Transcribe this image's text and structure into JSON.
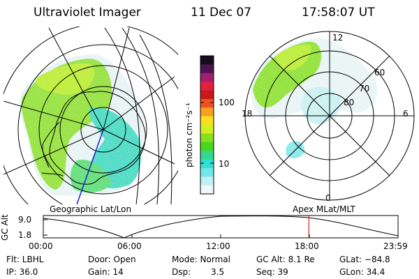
{
  "header": {
    "instrument": "Ultraviolet Imager",
    "date": "11 Dec 07",
    "time": "17:58:07 UT"
  },
  "colorbar": {
    "unit_label": "photon cm⁻²s⁻¹",
    "tick_labels": [
      "100",
      "10"
    ],
    "colors": [
      "#1a0a1e",
      "#4a1550",
      "#a0206e",
      "#e0203c",
      "#c81818",
      "#f05020",
      "#f8a020",
      "#f8e020",
      "#d0f020",
      "#88e020",
      "#48d820",
      "#30d890",
      "#30e0d0",
      "#70e8e8",
      "#c0f0f0",
      "#f0f8f8"
    ]
  },
  "left_map": {
    "projection_label": "Geographic Lat/Lon"
  },
  "right_map": {
    "projection_label": "Apex MLat/MLT",
    "mlt_labels": {
      "top": "12",
      "left": "18",
      "right": "6",
      "bottom": "0"
    },
    "mlat_labels": [
      "60",
      "70",
      "80"
    ]
  },
  "altitude_plot": {
    "ylabel": "GC Alt",
    "y_ticks": [
      "9.0",
      "1.8"
    ],
    "x_ticks": [
      "00:00",
      "06:00",
      "12:00",
      "18:00",
      "23:59"
    ],
    "current_time_fraction": 0.7486,
    "marker_color": "#cc2020"
  },
  "status": {
    "filter": "Flt: LBHL",
    "ip": "IP: 36.0",
    "door": "Door: Open",
    "gain": "Gain: 14",
    "mode": "Mode: Normal",
    "dsp_label": "Dsp:",
    "dsp_value": "3.5",
    "gc_alt": "GC Alt: 8.1 Re",
    "seq": "Seq: 39",
    "glat": "GLat: −84.8",
    "glon": "GLon:  34.4"
  }
}
